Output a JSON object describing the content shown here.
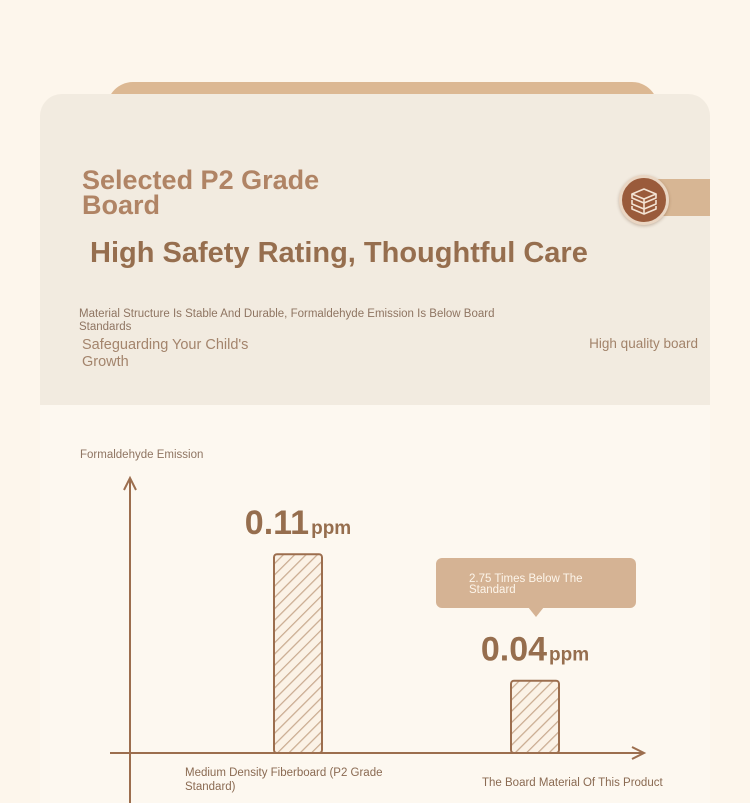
{
  "header": {
    "headline": "Selected P2 Grade Board",
    "subheadline": "High Safety Rating, Thoughtful Care",
    "description": "Material Structure Is Stable And Durable, Formaldehyde Emission Is Below Board Standards",
    "safeguard": "Safeguarding Your Child's Growth",
    "badge_icon": "board-stack-icon",
    "quality_label": "High quality board"
  },
  "callout": {
    "text": "2.75 Times Below The Standard"
  },
  "colors": {
    "background": "#fdf6ec",
    "card_top": "#f2ebe0",
    "accent_tan": "#d5b394",
    "accent_brown": "#966e4e",
    "badge": "#9a5b3b",
    "axis": "#9c6e4e"
  },
  "chart_data": {
    "type": "bar",
    "ylabel": "Formaldehyde Emission",
    "xlabel": "",
    "categories": [
      "Medium Density Fiberboard (P2 Grade Standard)",
      "The Board Material Of This Product"
    ],
    "values": [
      0.11,
      0.04
    ],
    "value_labels": [
      "0.11",
      "0.04"
    ],
    "unit": "ppm",
    "ylim": [
      0,
      0.14
    ],
    "grid": false,
    "legend": "none",
    "bar_fill": "diagonal-hatch"
  }
}
